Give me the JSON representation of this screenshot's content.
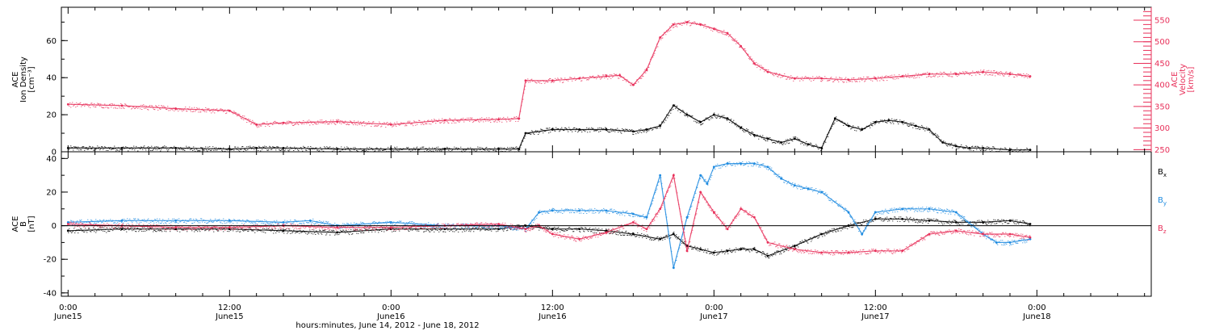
{
  "chart_data": {
    "type": "scatter",
    "xlabel": "hours:minutes, June 14, 2012 - June 18, 2012",
    "x_unit": "hours since June15 0:00",
    "xlim": [
      -0.5,
      80.5
    ],
    "x_ticks": [
      {
        "x": 0,
        "time": "0:00",
        "date": "June15"
      },
      {
        "x": 12,
        "time": "12:00",
        "date": "June15"
      },
      {
        "x": 24,
        "time": "0:00",
        "date": "June16"
      },
      {
        "x": 36,
        "time": "12:00",
        "date": "June16"
      },
      {
        "x": 48,
        "time": "0:00",
        "date": "June17"
      },
      {
        "x": 60,
        "time": "12:00",
        "date": "June17"
      },
      {
        "x": 72,
        "time": "0:00",
        "date": "June18"
      }
    ],
    "colors": {
      "black": "#000000",
      "red": "#e8305a",
      "blue": "#1e8be0"
    },
    "panels": [
      {
        "name": "plasma",
        "ylabel": [
          "ACE",
          "Ion Density",
          "[cm⁻³]"
        ],
        "ylim": [
          0,
          78
        ],
        "y_ticks": [
          0,
          20,
          40,
          60
        ],
        "ylabel_right": [
          "ACE",
          "Velocity",
          "[km/s]"
        ],
        "ylim_right": [
          245,
          580
        ],
        "y_ticks_right": [
          250,
          300,
          350,
          400,
          450,
          500,
          550
        ],
        "series": [
          {
            "name": "density",
            "color": "#000000",
            "axis": "left",
            "x": [
              0,
              4,
              8,
              12,
              14,
              16,
              20,
              24,
              28,
              32,
              33.5,
              34,
              36,
              38,
              40,
              42,
              43,
              44,
              45,
              46,
              47,
              48,
              49,
              50,
              51,
              52,
              53,
              54,
              55,
              56,
              57,
              58,
              59,
              60,
              61,
              62,
              63,
              64,
              65,
              66,
              67,
              68,
              70,
              71.5
            ],
            "y": [
              2,
              2,
              2,
              1.5,
              2,
              2,
              1.5,
              1.5,
              1.5,
              1.5,
              1.5,
              10,
              12,
              12,
              12,
              11,
              12,
              14,
              25,
              20,
              16,
              20,
              18,
              13,
              9,
              7,
              5,
              7,
              4,
              2,
              18,
              14,
              12,
              16,
              17,
              16,
              14,
              12,
              5,
              3,
              2,
              2,
              1,
              1
            ]
          },
          {
            "name": "velocity",
            "color": "#e8305a",
            "axis": "right",
            "x": [
              0,
              4,
              8,
              12,
              14,
              16,
              20,
              24,
              28,
              32,
              33.5,
              34,
              36,
              38,
              40,
              41,
              42,
              43,
              44,
              45,
              46,
              47,
              48,
              49,
              50,
              51,
              52,
              54,
              56,
              58,
              60,
              62,
              64,
              66,
              68,
              70,
              71.5
            ],
            "y": [
              355,
              352,
              345,
              340,
              308,
              312,
              315,
              308,
              318,
              320,
              322,
              410,
              410,
              415,
              420,
              422,
              400,
              435,
              510,
              540,
              545,
              540,
              530,
              520,
              490,
              450,
              430,
              415,
              415,
              412,
              415,
              420,
              425,
              425,
              430,
              425,
              420
            ]
          }
        ]
      },
      {
        "name": "magnetic",
        "ylabel": [
          "ACE",
          "B",
          "[nT]"
        ],
        "ylim": [
          -42,
          44
        ],
        "y_ticks": [
          -40,
          -20,
          0,
          20,
          40
        ],
        "zero_line": true,
        "legend": [
          {
            "label": "B",
            "sub": "x",
            "color": "#000000"
          },
          {
            "label": "B",
            "sub": "y",
            "color": "#1e8be0"
          },
          {
            "label": "B",
            "sub": "z",
            "color": "#e8305a"
          }
        ],
        "series": [
          {
            "name": "Bx",
            "color": "#000000",
            "x": [
              0,
              4,
              8,
              12,
              16,
              20,
              24,
              28,
              32,
              34,
              36,
              38,
              40,
              42,
              44,
              45,
              46,
              47,
              48,
              49,
              50,
              51,
              52,
              54,
              56,
              58,
              60,
              62,
              64,
              66,
              68,
              70,
              71.5
            ],
            "y": [
              -3,
              -2,
              -2,
              -2,
              -3,
              -4,
              -2,
              -2,
              -2,
              0,
              -2,
              -2,
              -3,
              -5,
              -8,
              -5,
              -12,
              -14,
              -16,
              -15,
              -14,
              -14,
              -18,
              -12,
              -5,
              0,
              4,
              4,
              3,
              2,
              2,
              3,
              1
            ]
          },
          {
            "name": "By",
            "color": "#1e8be0",
            "x": [
              0,
              4,
              8,
              12,
              16,
              18,
              20,
              24,
              28,
              32,
              34,
              35,
              36,
              38,
              40,
              42,
              43,
              44,
              45,
              46,
              47,
              47.5,
              48,
              49,
              50,
              51,
              52,
              53,
              54,
              55,
              56,
              58,
              59,
              60,
              62,
              64,
              66,
              68,
              69,
              70,
              71.5
            ],
            "y": [
              2,
              3,
              3,
              3,
              2,
              3,
              0,
              2,
              0,
              0,
              -2,
              8,
              9,
              9,
              9,
              7,
              5,
              30,
              -25,
              5,
              30,
              25,
              35,
              37,
              37,
              37,
              35,
              28,
              24,
              22,
              20,
              8,
              -5,
              8,
              10,
              10,
              8,
              -5,
              -10,
              -10,
              -8
            ]
          },
          {
            "name": "Bz",
            "color": "#e8305a",
            "x": [
              0,
              4,
              8,
              12,
              16,
              20,
              24,
              28,
              32,
              34,
              35,
              36,
              38,
              40,
              42,
              43,
              44,
              45,
              46,
              47,
              48,
              49,
              50,
              51,
              52,
              54,
              56,
              58,
              60,
              62,
              64,
              66,
              68,
              70,
              71.5
            ],
            "y": [
              1,
              0,
              -1,
              -1,
              0,
              -1,
              -1,
              0,
              1,
              -2,
              0,
              -5,
              -8,
              -4,
              2,
              -2,
              10,
              30,
              -15,
              20,
              8,
              -2,
              10,
              5,
              -10,
              -14,
              -16,
              -16,
              -15,
              -15,
              -5,
              -3,
              -5,
              -5,
              -7
            ]
          }
        ]
      }
    ]
  }
}
